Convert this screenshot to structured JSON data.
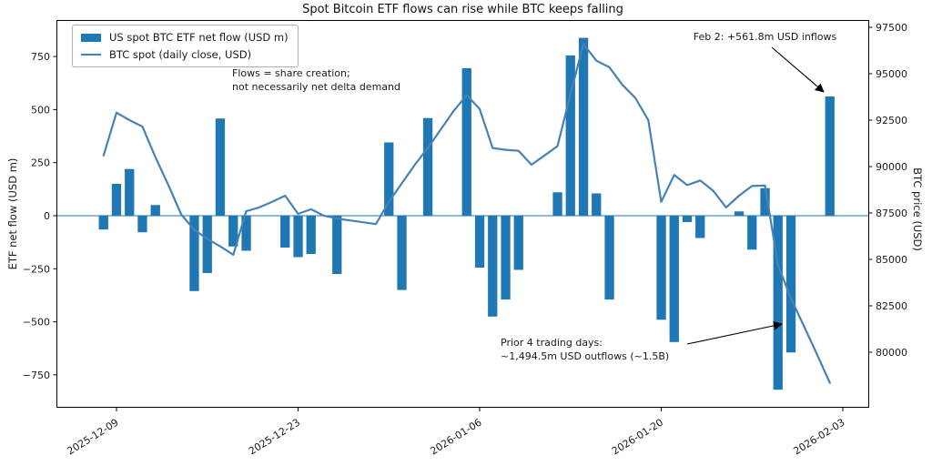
{
  "title": "Spot Bitcoin ETF flows can rise while BTC keeps falling",
  "legend": {
    "items": [
      {
        "label": "US spot BTC ETF net flow (USD m)",
        "swatch": "bar-swatch",
        "color": "#1f77b4"
      },
      {
        "label": "BTC spot (daily close, USD)",
        "swatch": "line-swatch",
        "color": "#4682b4"
      }
    ]
  },
  "chart_data": {
    "type": "bar+line dual-axis time series",
    "title": "Spot Bitcoin ETF flows can rise while BTC keeps falling",
    "colors": {
      "bars": "#1f77b4",
      "line": "#4682b4",
      "zero_line": "#1f77b4"
    },
    "left_axis": {
      "label": "ETF net flow (USD m)",
      "ticks": [
        750,
        500,
        250,
        0,
        -250,
        -500,
        -750
      ],
      "range": [
        -905,
        922
      ]
    },
    "right_axis": {
      "label": "BTC price (USD)",
      "ticks": [
        97500,
        95000,
        92500,
        90000,
        87500,
        85000,
        82500,
        80000
      ],
      "range": [
        77010,
        97892
      ]
    },
    "x_axis": {
      "tick_labels": [
        "2025-12-09",
        "2025-12-23",
        "2026-01-06",
        "2026-01-20",
        "2026-02-03"
      ],
      "range": [
        "2025-12-04",
        "2026-02-05"
      ]
    },
    "series": [
      {
        "name": "US spot BTC ETF net flow (USD m)",
        "type": "bar",
        "axis": "left",
        "dates": [
          "2025-12-08",
          "2025-12-09",
          "2025-12-10",
          "2025-12-11",
          "2025-12-12",
          "2025-12-15",
          "2025-12-16",
          "2025-12-17",
          "2025-12-18",
          "2025-12-19",
          "2025-12-22",
          "2025-12-23",
          "2025-12-24",
          "2025-12-26",
          "2025-12-29",
          "2025-12-30",
          "2025-12-31",
          "2026-01-02",
          "2026-01-05",
          "2026-01-06",
          "2026-01-07",
          "2026-01-08",
          "2026-01-09",
          "2026-01-12",
          "2026-01-13",
          "2026-01-14",
          "2026-01-15",
          "2026-01-16",
          "2026-01-20",
          "2026-01-21",
          "2026-01-22",
          "2026-01-23",
          "2026-01-26",
          "2026-01-27",
          "2026-01-28",
          "2026-01-29",
          "2026-01-30",
          "2026-02-02"
        ],
        "values": [
          -65,
          150,
          220,
          -78,
          50,
          -355,
          -270,
          458,
          -145,
          -165,
          -150,
          -195,
          -180,
          -275,
          0,
          345,
          -350,
          460,
          695,
          -245,
          -475,
          -395,
          -255,
          110,
          755,
          838,
          105,
          -395,
          -490,
          -595,
          -30,
          -105,
          20,
          -160,
          130,
          -820,
          -644.5,
          561.8
        ]
      },
      {
        "name": "BTC spot (daily close, USD)",
        "type": "line",
        "axis": "right",
        "start_date": "2025-12-08",
        "freq": "daily",
        "values": [
          90600,
          92900,
          92500,
          92150,
          90500,
          89000,
          87400,
          86600,
          86100,
          85700,
          85250,
          87600,
          87800,
          88100,
          88430,
          87450,
          87700,
          87350,
          87200,
          87100,
          87000,
          86900,
          88100,
          89100,
          90100,
          91000,
          92000,
          93000,
          93850,
          93100,
          91000,
          90900,
          90850,
          90100,
          90600,
          91100,
          93900,
          96600,
          95700,
          95350,
          94400,
          93700,
          92500,
          88100,
          89550,
          89000,
          89250,
          88700,
          87800,
          88430,
          88950,
          88980,
          84700,
          82900,
          81400,
          79900,
          78350
        ]
      }
    ],
    "annotations": [
      {
        "id": "flows-note",
        "text": "Flows = share creation;\nnot necessarily net delta demand",
        "arrow": false
      },
      {
        "id": "feb2-note",
        "text": "Feb 2: +561.8m USD inflows",
        "arrow": true,
        "target_date": "2026-02-02",
        "target_value": 561.8
      },
      {
        "id": "prior4-note",
        "text": "Prior 4 trading days:\n~1,494.5m USD outflows (~1.5B)",
        "arrow": true,
        "target_date": "2026-01-30",
        "target_value": -644.5
      }
    ]
  }
}
